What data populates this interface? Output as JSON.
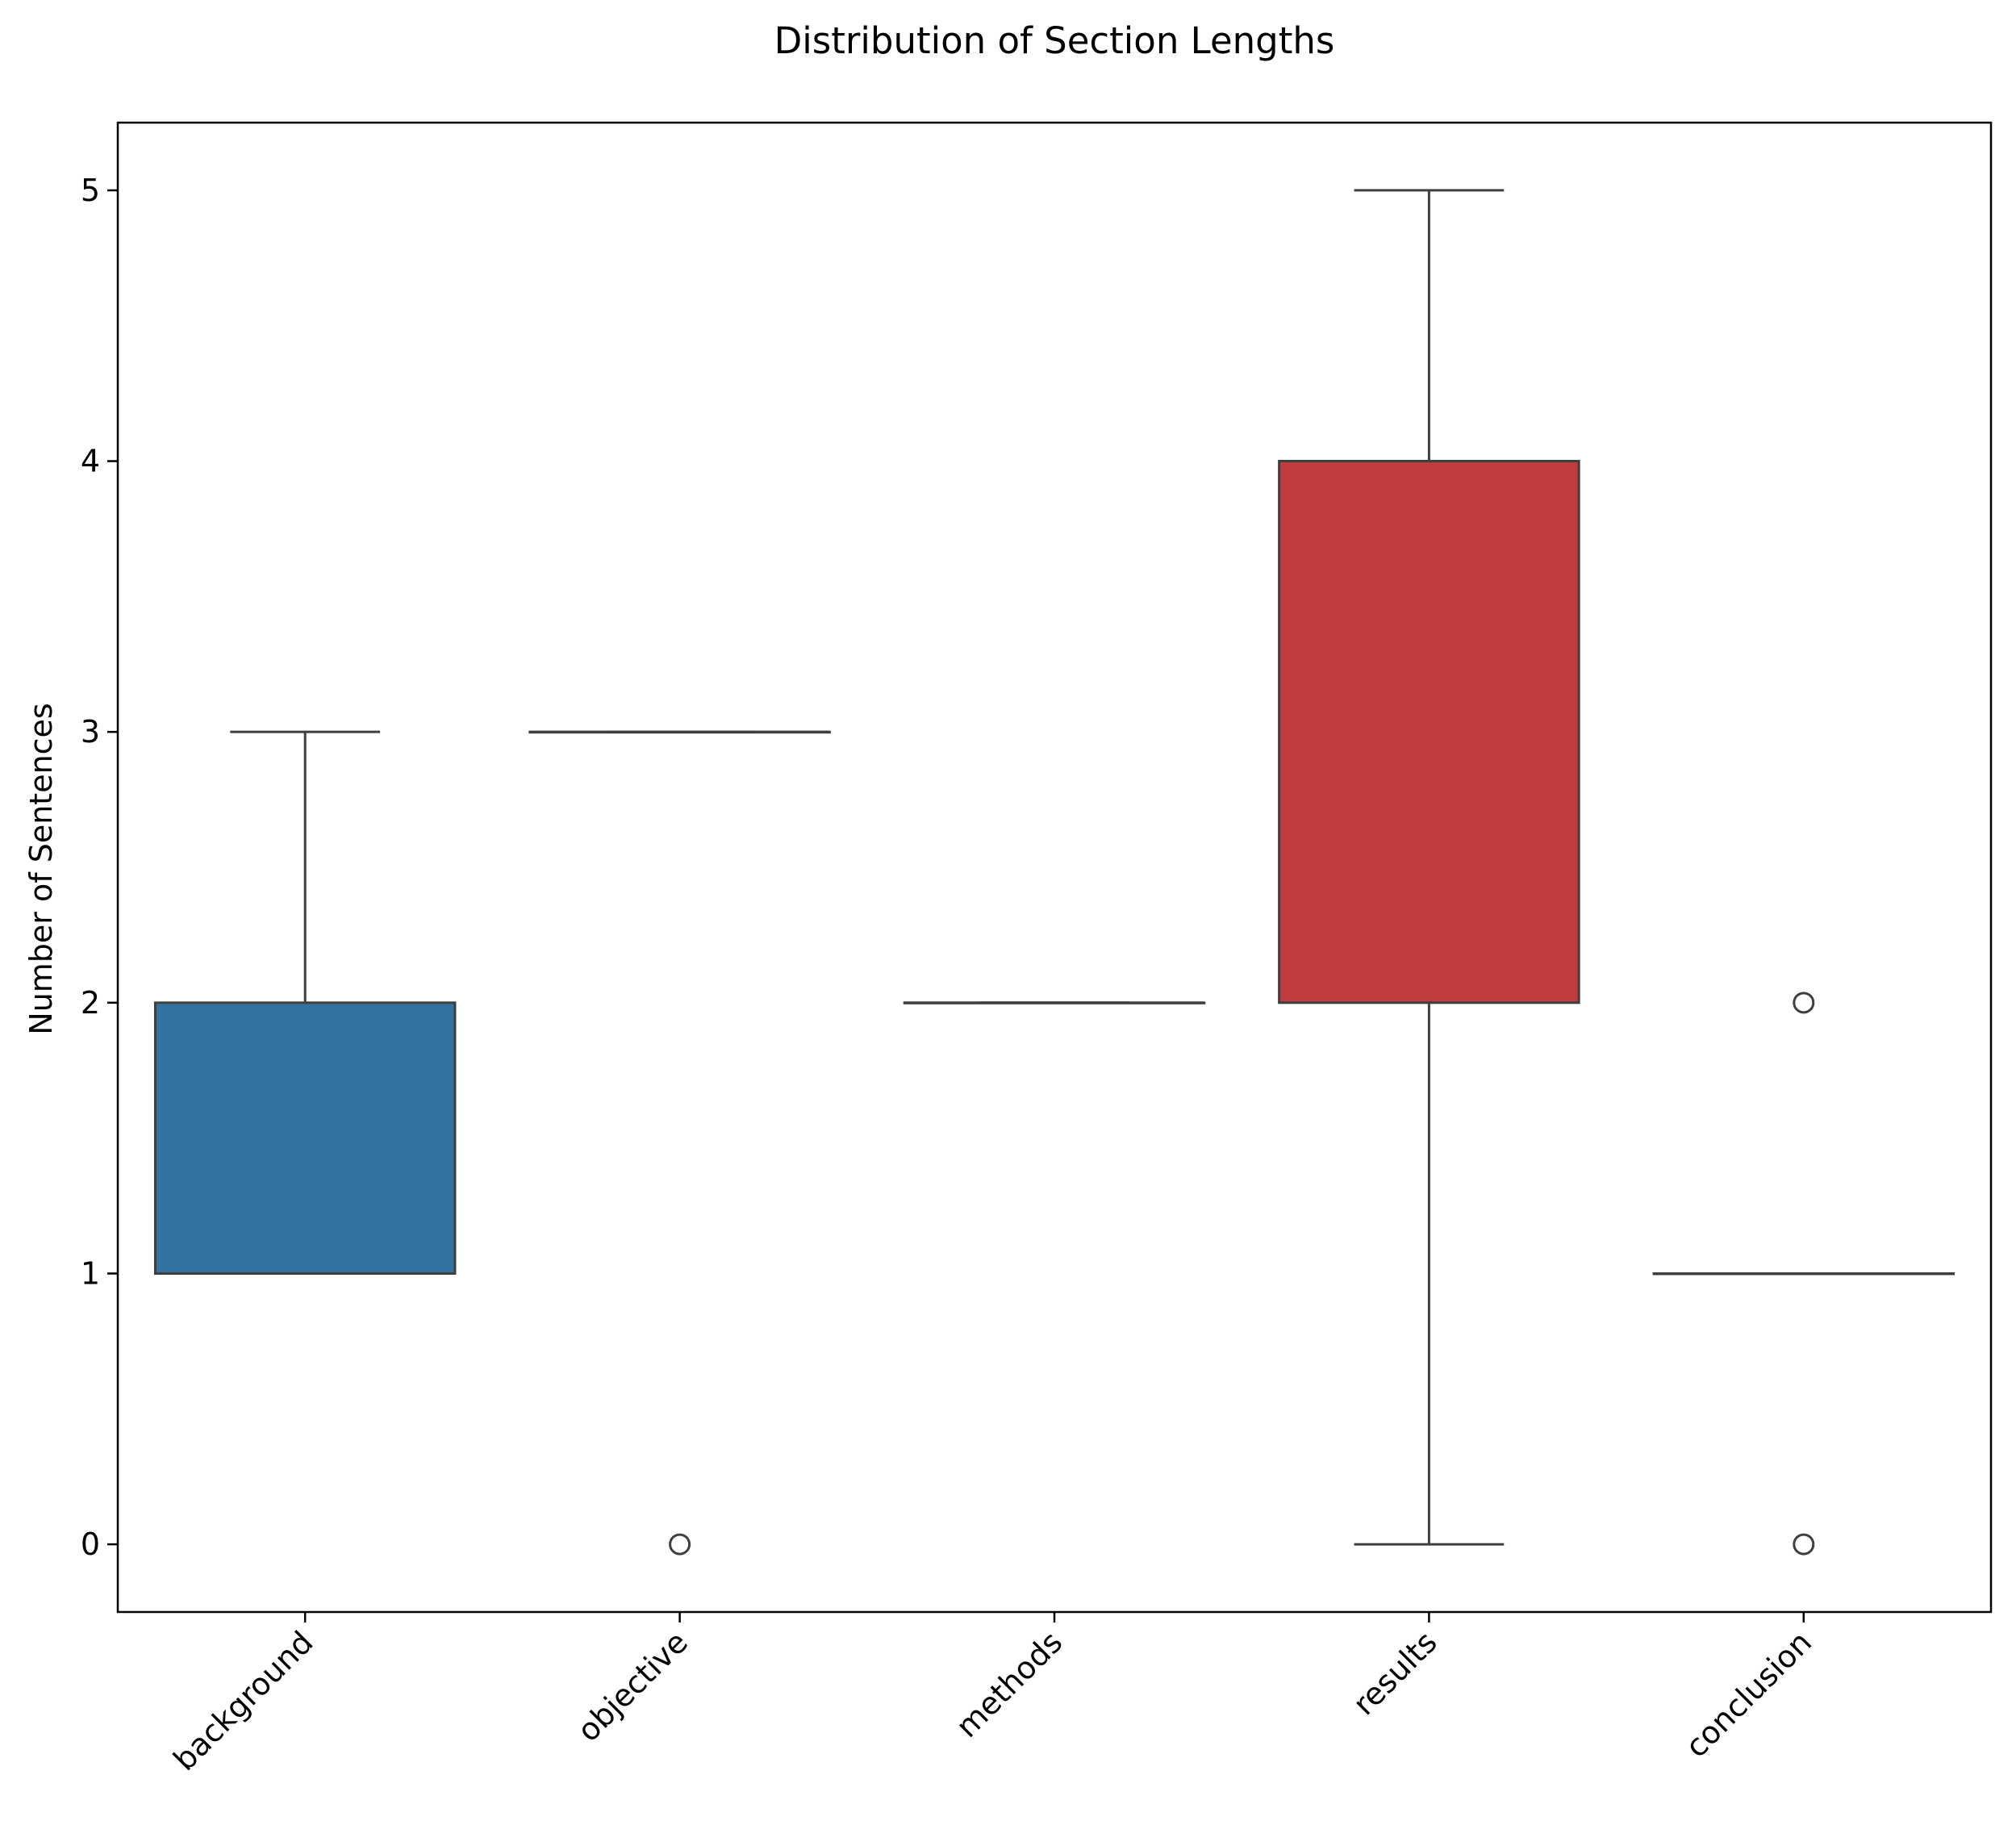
{
  "chart_data": {
    "type": "box",
    "title": "Distribution of Section Lengths",
    "xlabel": "",
    "ylabel": "Number of Sentences",
    "ylim": [
      -0.25,
      5.25
    ],
    "yticks": [
      0,
      1,
      2,
      3,
      4,
      5
    ],
    "grid": false,
    "categories": [
      "background",
      "objective",
      "methods",
      "results",
      "conclusion"
    ],
    "boxes": [
      {
        "category": "background",
        "q1": 1,
        "median": 1,
        "q3": 2,
        "whisker_low": 1,
        "whisker_high": 3,
        "outliers": [],
        "color": "#3274a1"
      },
      {
        "category": "objective",
        "q1": 3,
        "median": 3,
        "q3": 3,
        "whisker_low": 3,
        "whisker_high": 3,
        "outliers": [
          0
        ],
        "color": "#e1812c"
      },
      {
        "category": "methods",
        "q1": 2,
        "median": 2,
        "q3": 2,
        "whisker_low": 2,
        "whisker_high": 2,
        "outliers": [],
        "color": "#3a923a"
      },
      {
        "category": "results",
        "q1": 2,
        "median": 4,
        "q3": 4,
        "whisker_low": 0,
        "whisker_high": 5,
        "outliers": [],
        "color": "#c03d3e"
      },
      {
        "category": "conclusion",
        "q1": 1,
        "median": 1,
        "q3": 1,
        "whisker_low": 1,
        "whisker_high": 1,
        "outliers": [
          0,
          2
        ],
        "color": "#9372b2"
      }
    ],
    "colors": {
      "edge": "#3f3f3f",
      "axis": "#000000",
      "background": "#ffffff"
    }
  }
}
